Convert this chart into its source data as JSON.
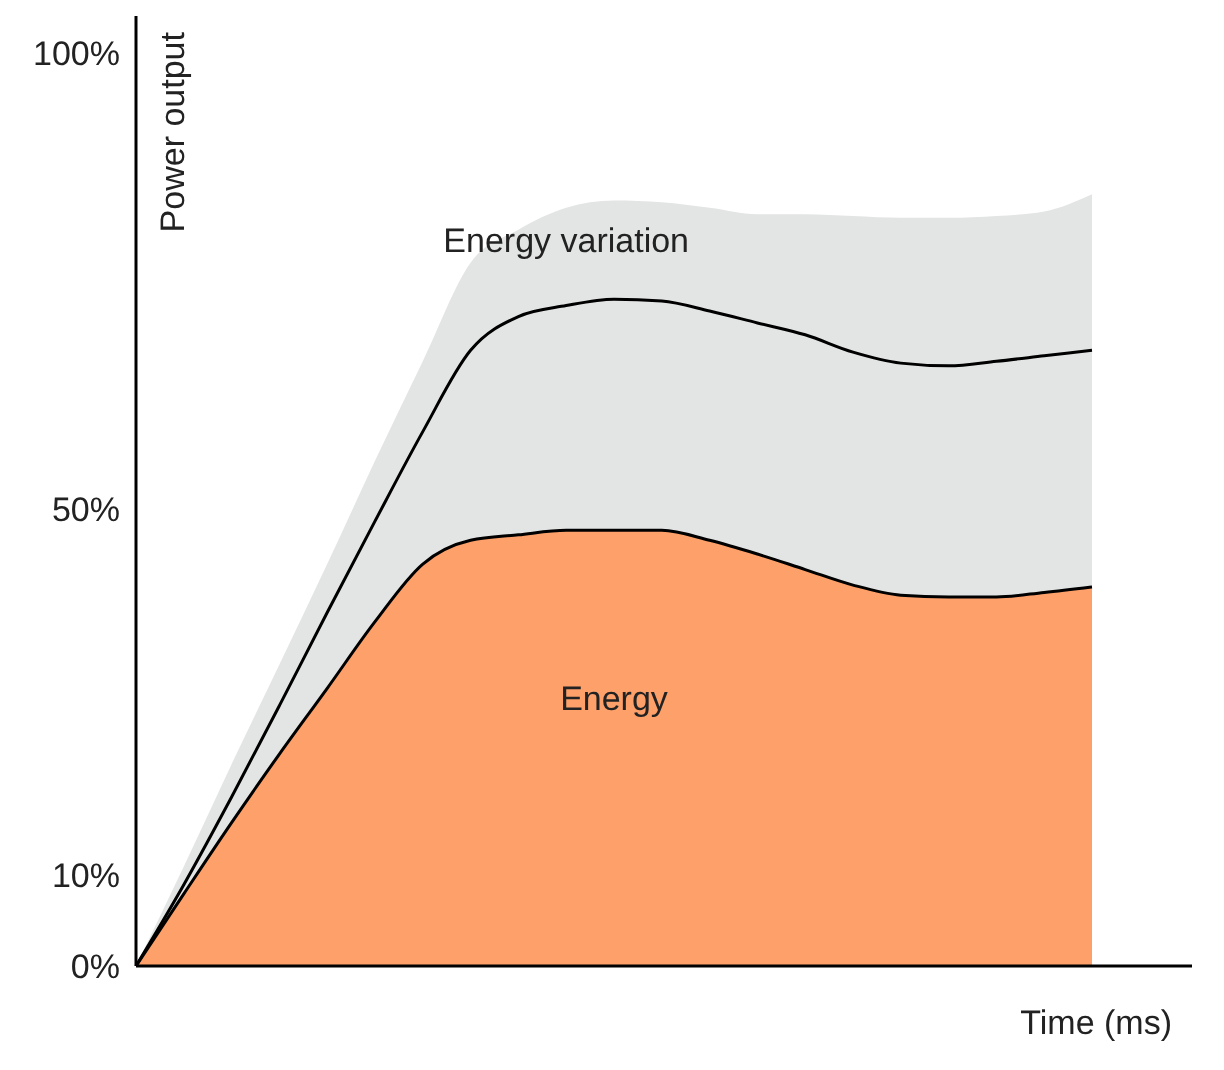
{
  "chart_data": {
    "type": "area",
    "xlabel": "Time (ms)",
    "ylabel": "Power output",
    "categories": [
      null,
      null,
      null,
      null,
      null,
      null,
      null,
      null,
      null,
      null,
      null,
      null,
      null,
      null,
      null,
      null,
      null,
      null,
      null,
      null,
      null
    ],
    "series": [
      {
        "name": "Energy variation",
        "color": "#e3e4e4",
        "values": [
          0,
          10.9,
          22.1,
          33,
          44,
          55.3,
          66.2,
          77,
          80.6,
          83,
          83.8,
          83.6,
          83,
          82.3,
          82.3,
          82.1,
          81.9,
          81.9,
          82.1,
          82.6,
          84.5
        ]
      },
      {
        "type": "line",
        "color": "#000000",
        "values": [
          0,
          8.9,
          18.5,
          28.5,
          38.7,
          48.7,
          58.5,
          67.4,
          71.1,
          72.3,
          73,
          72.8,
          71.7,
          70.4,
          69.1,
          67.2,
          66,
          65.7,
          66.2,
          66.8,
          67.4
        ]
      },
      {
        "name": "Energy",
        "color": "#fda06a",
        "values": [
          0,
          7.9,
          15.7,
          23.2,
          30.4,
          37.7,
          44,
          46.6,
          47.2,
          47.7,
          47.7,
          47.7,
          46.6,
          45.1,
          43.4,
          41.7,
          40.6,
          40.4,
          40.4,
          40.9,
          41.5
        ]
      }
    ],
    "ylim": [
      0,
      104
    ],
    "yticks": [
      {
        "value": 0,
        "label": "0%"
      },
      {
        "value": 10,
        "label": "10%"
      },
      {
        "value": 50,
        "label": "50%"
      },
      {
        "value": 100,
        "label": "100%"
      }
    ],
    "tick_labels": "y"
  }
}
